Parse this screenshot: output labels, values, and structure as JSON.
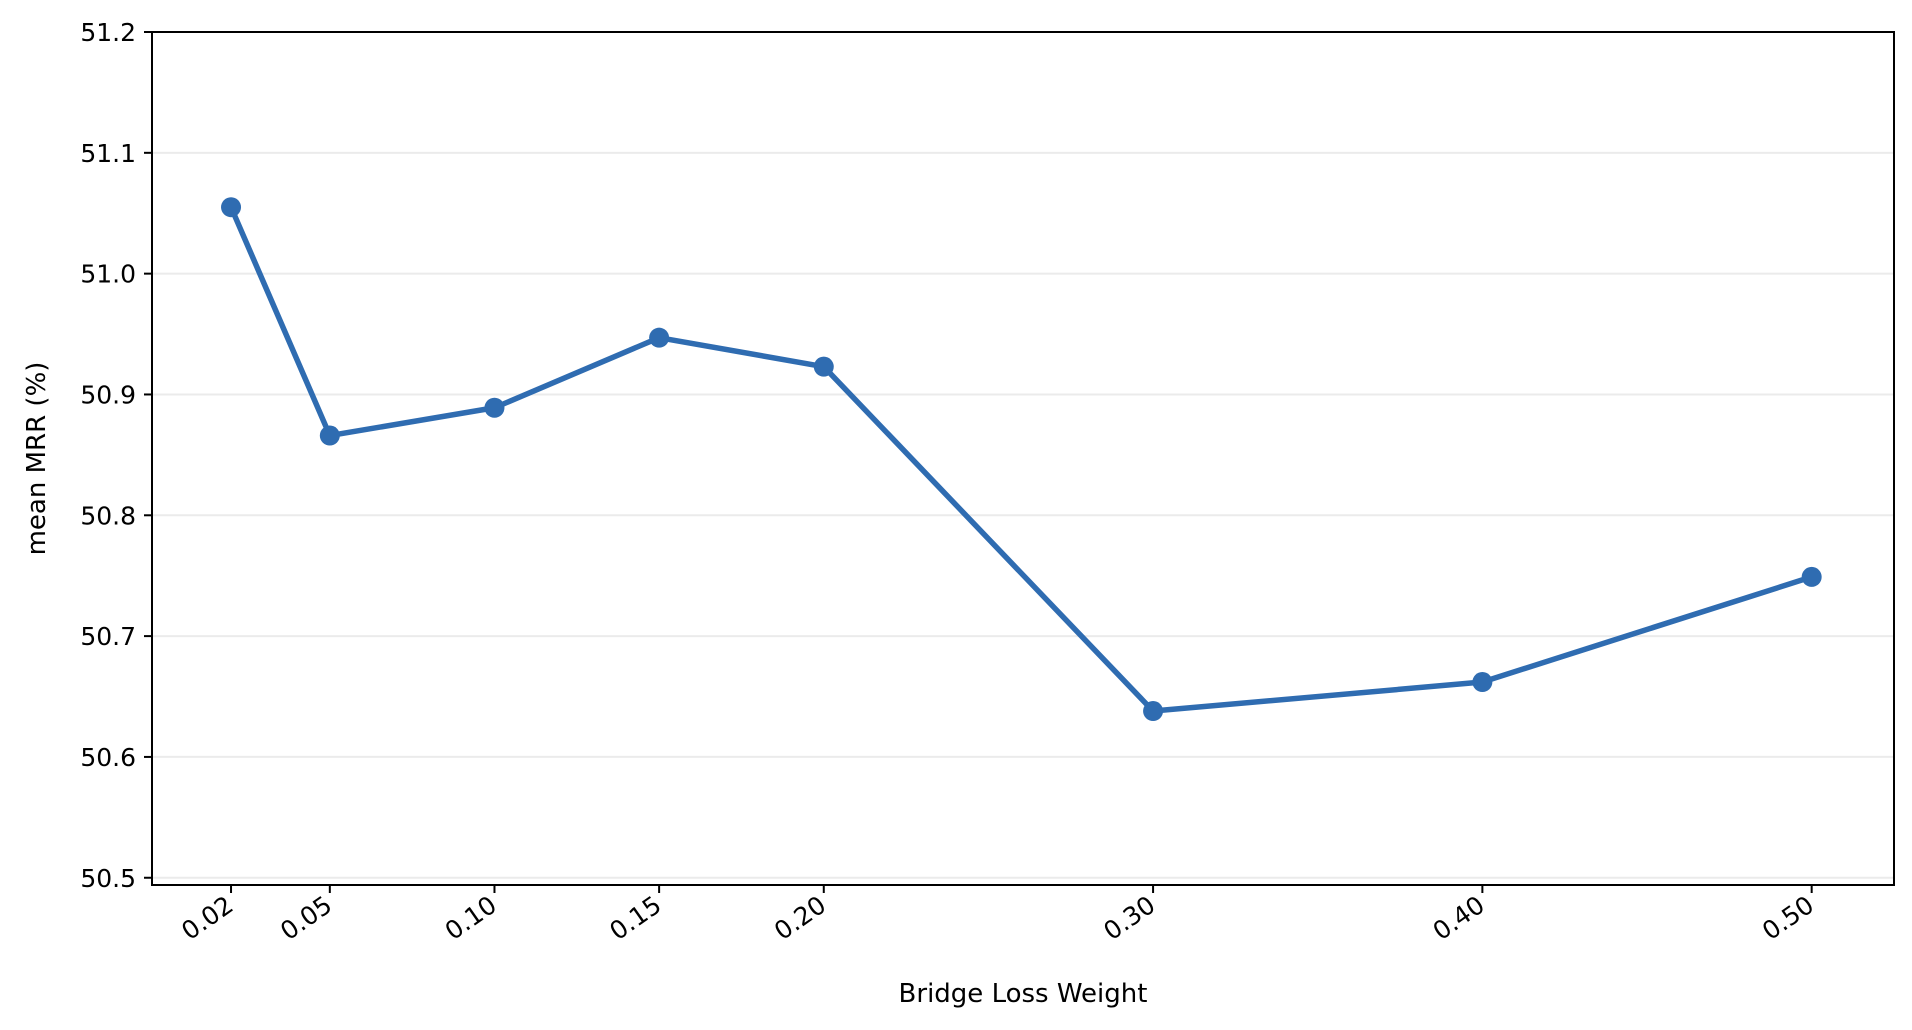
{
  "chart_data": {
    "type": "line",
    "title": "",
    "xlabel": "Bridge Loss Weight",
    "ylabel": "mean MRR (%)",
    "x": [
      0.02,
      0.05,
      0.1,
      0.15,
      0.2,
      0.3,
      0.4,
      0.5
    ],
    "x_tick_labels": [
      "0.02",
      "0.05",
      "0.10",
      "0.15",
      "0.20",
      "0.30",
      "0.40",
      "0.50"
    ],
    "xlim": [
      -0.004,
      0.525
    ],
    "ylim": [
      50.494,
      51.2
    ],
    "y_ticks": [
      50.5,
      50.6,
      50.7,
      50.8,
      50.9,
      51.0,
      51.1,
      51.2
    ],
    "y_tick_labels": [
      "50.5",
      "50.6",
      "50.7",
      "50.8",
      "50.9",
      "51.0",
      "51.1",
      "51.2"
    ],
    "grid": "horizontal",
    "series": [
      {
        "values": [
          51.055,
          50.866,
          50.889,
          50.947,
          50.923,
          50.638,
          50.662,
          50.749
        ],
        "color": "#2f6cb1"
      }
    ]
  }
}
